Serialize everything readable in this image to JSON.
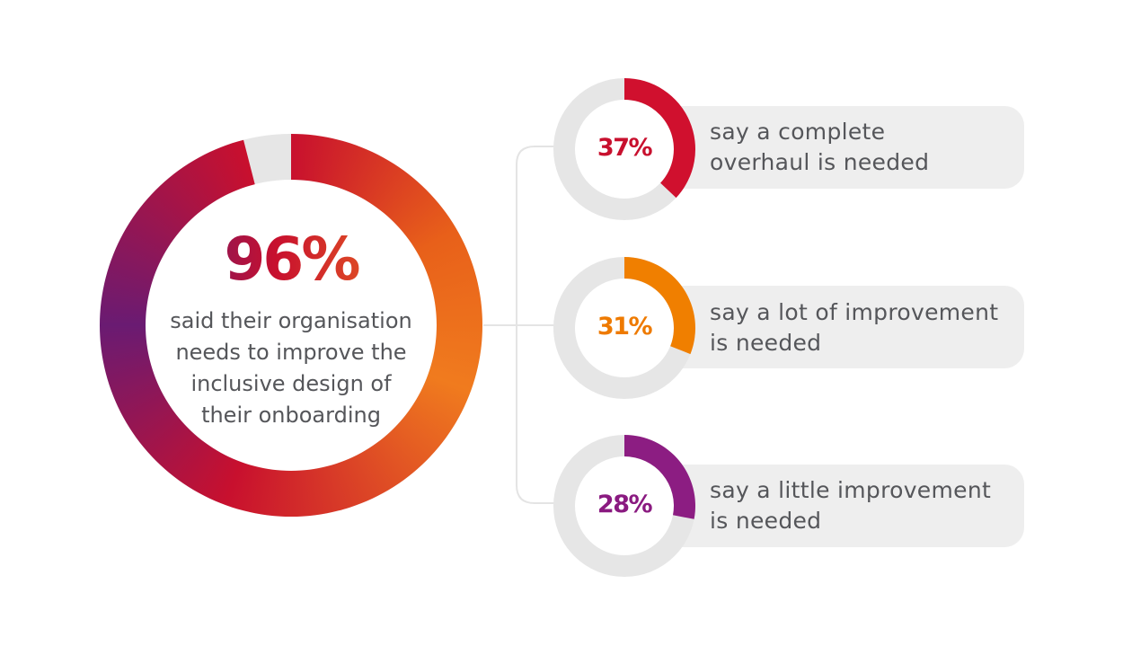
{
  "main": {
    "percent_label": "96%",
    "caption": [
      "said their organisation",
      "needs to improve the",
      "inclusive design of",
      "their onboarding"
    ]
  },
  "items": [
    {
      "percent_label": "37%",
      "text": [
        "say a complete",
        "overhaul is needed"
      ]
    },
    {
      "percent_label": "31%",
      "text": [
        "say a lot of improvement",
        "is needed"
      ]
    },
    {
      "percent_label": "28%",
      "text": [
        "say a little improvement",
        "is needed"
      ]
    }
  ],
  "chart_data": {
    "type": "pie",
    "main": {
      "value": 96,
      "unit": "%",
      "track_color": "#e6e6e6",
      "gradient_colors": [
        "#c8102e",
        "#e8601a",
        "#f07b1e",
        "#c8102e",
        "#6a1b72",
        "#c8102e"
      ]
    },
    "breakdown": [
      {
        "value": 37,
        "unit": "%",
        "color": "#d0102e"
      },
      {
        "value": 31,
        "unit": "%",
        "color": "#f07f00"
      },
      {
        "value": 28,
        "unit": "%",
        "color": "#8c1d82"
      }
    ],
    "track_color": "#e6e6e6"
  },
  "colors": {
    "text": "#55565a",
    "card": "#eeeeee",
    "connector": "#e4e4e4"
  }
}
